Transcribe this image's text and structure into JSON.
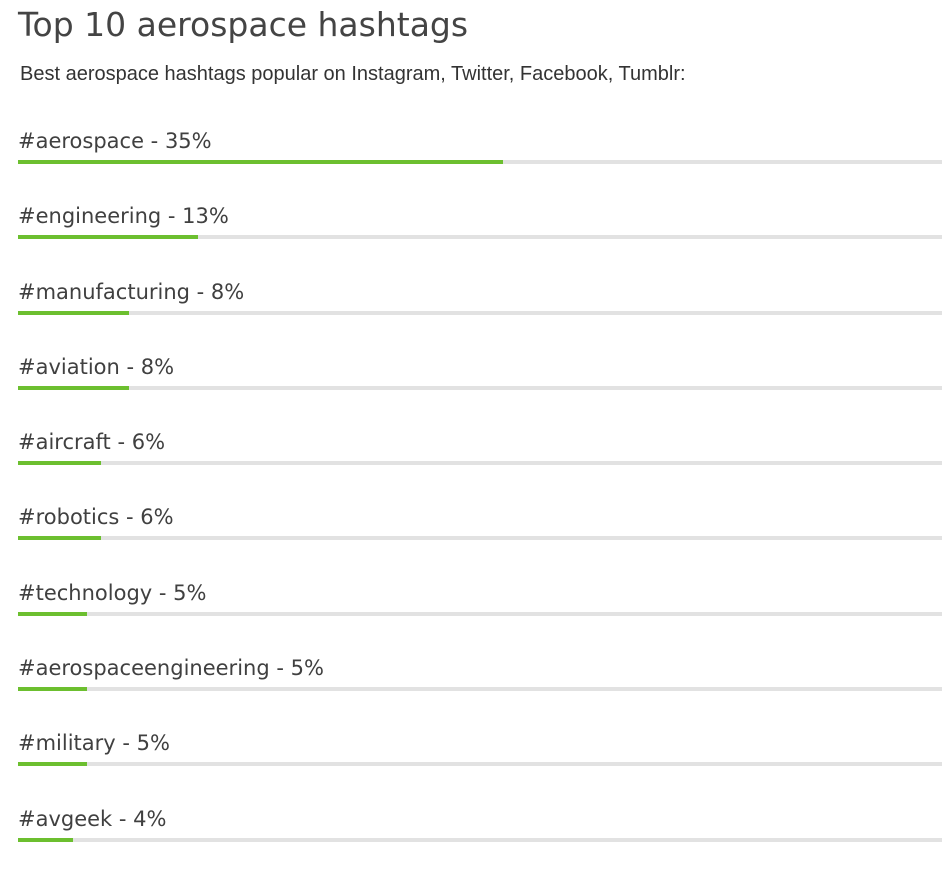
{
  "title": "Top 10 aerospace hashtags",
  "subtitle": "Best aerospace hashtags popular on Instagram, Twitter, Facebook, Tumblr:",
  "colors": {
    "fill": "#6cbf2f",
    "track": "#e2e2e2",
    "text": "#404040"
  },
  "chart_data": {
    "type": "bar",
    "orientation": "horizontal",
    "title": "Top 10 aerospace hashtags",
    "subtitle": "Best aerospace hashtags popular on Instagram, Twitter, Facebook, Tumblr:",
    "categories": [
      "#aerospace",
      "#engineering",
      "#manufacturing",
      "#aviation",
      "#aircraft",
      "#robotics",
      "#technology",
      "#aerospaceengineering",
      "#military",
      "#avgeek"
    ],
    "values": [
      35,
      13,
      8,
      8,
      6,
      6,
      5,
      5,
      5,
      4
    ],
    "labels": [
      "#aerospace - 35%",
      "#engineering - 13%",
      "#manufacturing - 8%",
      "#aviation - 8%",
      "#aircraft - 6%",
      "#robotics - 6%",
      "#technology - 5%",
      "#aerospaceengineering - 5%",
      "#military - 5%",
      "#avgeek - 4%"
    ],
    "unit": "%",
    "grid": false
  }
}
